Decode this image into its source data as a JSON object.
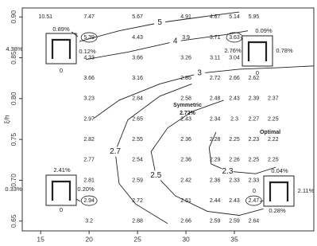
{
  "chart_data": {
    "type": "contour",
    "ylabel": "ξ/h",
    "xlim": [
      13.1,
      43.2
    ],
    "ylim": [
      0.638,
      0.911
    ],
    "xticks": [
      15,
      20,
      25,
      30,
      35
    ],
    "yticks": [
      {
        "value": 0.9,
        "label": "0.90"
      },
      0.85,
      {
        "value": 0.8,
        "label": "0.80"
      },
      0.75,
      {
        "value": 0.7,
        "label": "0.70"
      },
      0.65
    ],
    "x": [
      15.5,
      20,
      25,
      30,
      33,
      35,
      37,
      39
    ],
    "y": [
      0.9,
      0.875,
      0.85,
      0.825,
      0.8,
      0.775,
      0.75,
      0.725,
      0.7,
      0.675,
      0.65
    ],
    "values": [
      [
        10.51,
        7.47,
        5.67,
        4.91,
        4.67,
        5.14,
        5.95,
        null
      ],
      [
        null,
        5.39,
        4.43,
        3.9,
        3.71,
        3.63,
        null,
        null
      ],
      [
        null,
        4.33,
        3.66,
        3.26,
        3.11,
        3.04,
        null,
        null
      ],
      [
        null,
        3.66,
        3.16,
        2.85,
        2.72,
        2.66,
        2.62,
        null
      ],
      [
        null,
        3.23,
        2.84,
        2.58,
        2.48,
        2.43,
        2.39,
        2.37
      ],
      [
        null,
        2.97,
        2.65,
        2.43,
        2.34,
        2.3,
        2.27,
        2.25
      ],
      [
        null,
        2.82,
        2.55,
        2.36,
        2.28,
        2.25,
        2.23,
        2.22
      ],
      [
        null,
        2.77,
        2.54,
        2.36,
        2.29,
        2.26,
        2.25,
        2.25
      ],
      [
        null,
        2.81,
        2.59,
        2.42,
        2.36,
        2.33,
        2.33,
        null
      ],
      [
        null,
        2.94,
        2.72,
        2.51,
        2.44,
        2.43,
        2.47,
        null
      ],
      [
        null,
        3.2,
        2.88,
        2.66,
        2.59,
        2.59,
        2.64,
        null
      ]
    ],
    "circled": [
      {
        "x": 20,
        "y": 0.875
      },
      {
        "x": 35,
        "y": 0.875
      },
      {
        "x": 20,
        "y": 0.675
      },
      {
        "x": 37,
        "y": 0.675
      }
    ],
    "contours": [
      {
        "level": 5,
        "x": [
          19.0,
          23.1,
          27.3,
          32.2,
          35.5
        ],
        "y": [
          0.87,
          0.883,
          0.893,
          0.901,
          0.906
        ]
      },
      {
        "level": 4,
        "x": [
          19.7,
          24.0,
          28.9,
          33.9,
          36.4
        ],
        "y": [
          0.848,
          0.857,
          0.87,
          0.878,
          0.883
        ]
      },
      {
        "level": 3,
        "x": [
          20.5,
          23.1,
          27.3,
          31.4,
          35.5,
          39.7,
          43.2
        ],
        "y": [
          0.776,
          0.798,
          0.818,
          0.831,
          0.836,
          0.838,
          0.84
        ]
      },
      {
        "level": 2.7,
        "x": [
          30.6,
          27.3,
          24.0,
          22.7,
          23.1,
          24.8,
          28.1
        ],
        "y": [
          0.818,
          0.803,
          0.774,
          0.735,
          0.696,
          0.671,
          0.647
        ]
      },
      {
        "level": 2.5,
        "x": [
          33.9,
          30.6,
          28.1,
          26.4,
          26.9,
          28.9,
          32.2,
          35.5,
          38.0
        ],
        "y": [
          0.798,
          0.784,
          0.764,
          0.735,
          0.706,
          0.681,
          0.662,
          0.657,
          0.665
        ]
      },
      {
        "level": 2.3,
        "x": [
          33.1,
          32.4,
          32.6,
          34.3,
          37.2,
          39.3
        ],
        "y": [
          0.759,
          0.74,
          0.72,
          0.711,
          0.708,
          0.716
        ]
      }
    ],
    "annotations": [
      "Symmetric",
      "2.72%",
      "Optimal"
    ],
    "insets": [
      {
        "labels": [
          "0.89%",
          "4.38%",
          "0.12%",
          "0"
        ]
      },
      {
        "labels": [
          "2.76%",
          "0.09%",
          "0.78%",
          "0"
        ]
      },
      {
        "labels": [
          "2.41%",
          "0.33%",
          "0.20%",
          "0"
        ]
      },
      {
        "labels": [
          "0.04%",
          "2.11%",
          "0.28%",
          "0"
        ]
      }
    ]
  }
}
